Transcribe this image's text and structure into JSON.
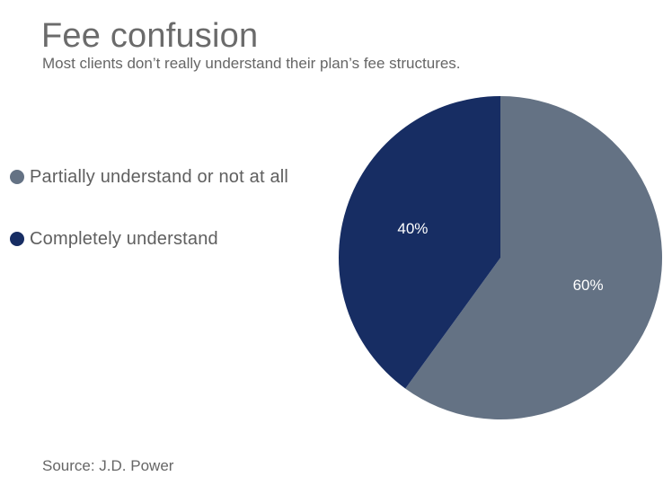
{
  "title": "Fee confusion",
  "subtitle": "Most clients don’t really understand their plan’s fee structures.",
  "source": "Source: J.D. Power",
  "chart_data": {
    "type": "pie",
    "title": "Fee confusion",
    "subtitle": "Most clients don’t really understand their plan’s fee structures.",
    "legend_position": "left",
    "slices": [
      {
        "label": "Partially understand or not at all",
        "value": 60,
        "value_label": "60%",
        "color": "#647284"
      },
      {
        "label": "Completely understand",
        "value": 40,
        "value_label": "40%",
        "color": "#172d63"
      }
    ],
    "start_angle_deg": 0,
    "direction": "clockwise",
    "source": "Source: J.D. Power"
  }
}
